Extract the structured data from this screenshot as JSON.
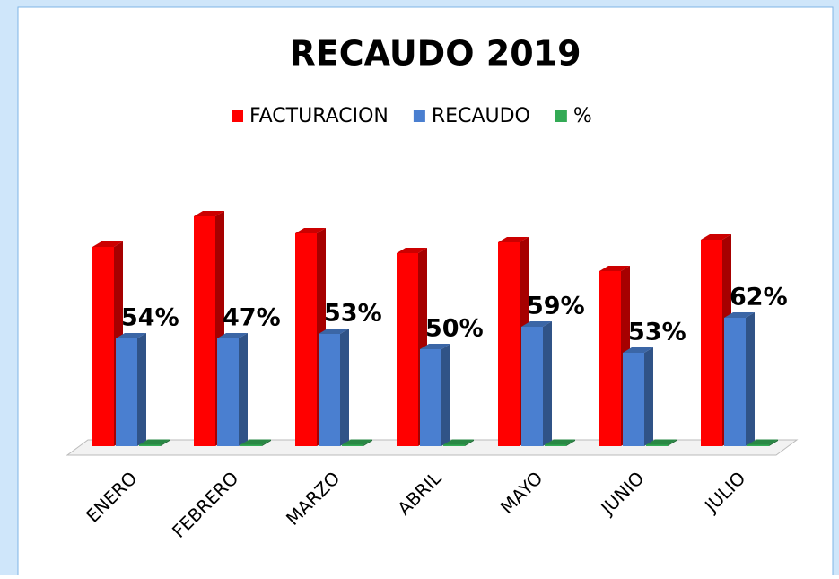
{
  "chart_data": {
    "type": "bar3d",
    "title": "RECAUDO 2019",
    "categories": [
      "ENERO",
      "FEBRERO",
      "MARZO",
      "ABRIL",
      "MAYO",
      "JUNIO",
      "JULIO"
    ],
    "series": [
      {
        "name": "FACTURACION",
        "color": "#ff0000",
        "values": [
          222,
          256,
          237,
          215,
          227,
          195,
          230
        ]
      },
      {
        "name": "RECAUDO",
        "color": "#4a7fd0",
        "values": [
          120,
          120,
          125,
          108,
          133,
          104,
          143
        ]
      },
      {
        "name": "%",
        "color": "#33aa55",
        "values": [
          0.54,
          0.47,
          0.53,
          0.5,
          0.59,
          0.53,
          0.62
        ],
        "value_labels": [
          "54%",
          "47%",
          "53%",
          "50%",
          "59%",
          "53%",
          "62%"
        ]
      }
    ],
    "ylim": [
      0,
      300
    ],
    "legend": "top"
  }
}
